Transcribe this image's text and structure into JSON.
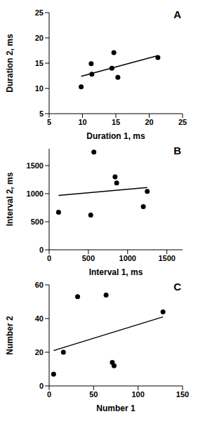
{
  "chart_data": [
    {
      "type": "scatter",
      "title": "A",
      "x_label": "Duration 1, ms",
      "y_label": "Duration 2, ms",
      "xlim": [
        5,
        25
      ],
      "ylim": [
        5,
        25
      ],
      "xticks": [
        5,
        10,
        15,
        20,
        25
      ],
      "yticks": [
        5,
        10,
        15,
        20,
        25
      ],
      "grid": false,
      "series": [
        {
          "type": "scatter",
          "color": "#000000",
          "marker": "circle",
          "x": [
            9.8,
            11.3,
            11.4,
            14.4,
            14.7,
            15.3,
            21.3
          ],
          "values": [
            10.3,
            14.9,
            12.8,
            14.0,
            17.1,
            12.2,
            16.1
          ]
        },
        {
          "type": "line",
          "color": "#000000",
          "line_style": "solid",
          "x": [
            9.8,
            21.3
          ],
          "values": [
            12.4,
            16.5
          ]
        }
      ]
    },
    {
      "type": "scatter",
      "title": "B",
      "x_label": "Interval 1, ms",
      "y_label": "Interval 2, ms",
      "xlim": [
        0,
        1700
      ],
      "ylim": [
        0,
        1800
      ],
      "xticks": [
        0,
        500,
        1000,
        1500
      ],
      "yticks": [
        0,
        500,
        1000,
        1500
      ],
      "grid": false,
      "series": [
        {
          "type": "scatter",
          "color": "#000000",
          "marker": "circle",
          "x": [
            120,
            530,
            570,
            840,
            860,
            1200,
            1250
          ],
          "values": [
            670,
            620,
            1740,
            1300,
            1190,
            770,
            1040
          ]
        },
        {
          "type": "line",
          "color": "#000000",
          "line_style": "solid",
          "x": [
            120,
            1250
          ],
          "values": [
            970,
            1110
          ]
        }
      ]
    },
    {
      "type": "scatter",
      "title": "C",
      "x_label": "Number 1",
      "y_label": "Number 2",
      "xlim": [
        0,
        150
      ],
      "ylim": [
        0,
        60
      ],
      "xticks": [
        0,
        50,
        100,
        150
      ],
      "yticks": [
        0,
        20,
        40,
        60
      ],
      "grid": false,
      "series": [
        {
          "type": "scatter",
          "color": "#000000",
          "marker": "circle",
          "x": [
            5,
            16,
            32,
            64,
            71,
            73,
            128
          ],
          "values": [
            7,
            20,
            53,
            54,
            14,
            12,
            44
          ]
        },
        {
          "type": "line",
          "color": "#000000",
          "line_style": "solid",
          "x": [
            5,
            128
          ],
          "values": [
            21,
            41
          ]
        }
      ]
    }
  ]
}
